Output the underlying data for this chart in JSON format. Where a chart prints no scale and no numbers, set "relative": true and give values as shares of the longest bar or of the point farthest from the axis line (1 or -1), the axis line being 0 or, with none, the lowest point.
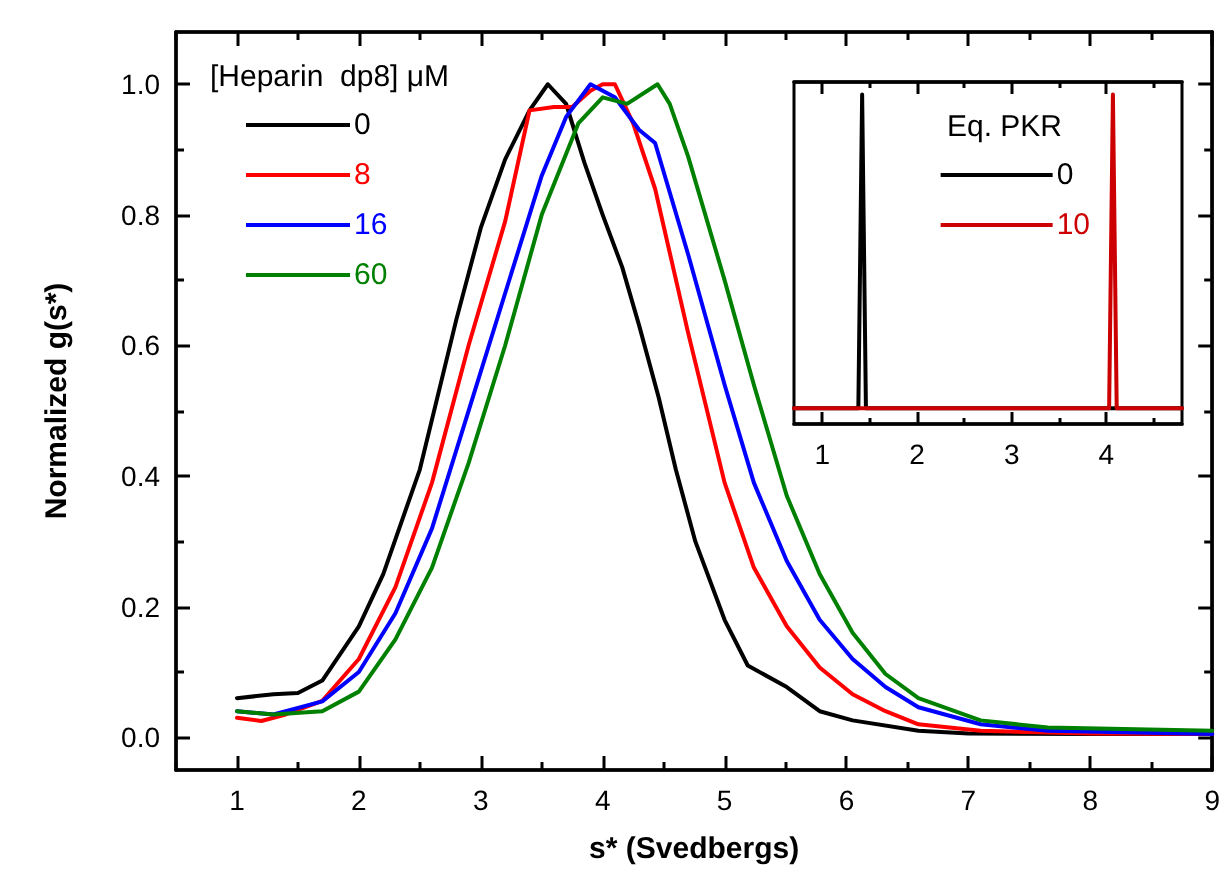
{
  "chart_data": [
    {
      "type": "line",
      "xlabel": "s* (Svedbergs)",
      "ylabel": "Normalized g(s*)",
      "legend_title": "[Heparin  dp8] μM",
      "legend": "top left",
      "grid": false,
      "marker": "none",
      "line_style": "solid",
      "xlim": [
        0.5,
        9
      ],
      "xticks": [
        1,
        2,
        3,
        4,
        5,
        6,
        7,
        8,
        9
      ],
      "ylim": [
        -0.05,
        1.08
      ],
      "yticks": [
        {
          "value": 0,
          "label": "0.0"
        },
        {
          "value": 0.2,
          "label": "0.2"
        },
        {
          "value": 0.4,
          "label": "0.4"
        },
        {
          "value": 0.6,
          "label": "0.6"
        },
        {
          "value": 0.8,
          "label": "0.8"
        },
        {
          "value": 1,
          "label": "1.0"
        }
      ],
      "series": [
        {
          "name": "0",
          "color": "#000000",
          "x": [
            1,
            1.3,
            1.5,
            1.7,
            2.0,
            2.2,
            2.5,
            2.8,
            3.0,
            3.2,
            3.4,
            3.55,
            3.7,
            3.85,
            4.0,
            4.16,
            4.3,
            4.46,
            4.6,
            4.76,
            5.0,
            5.19,
            5.51,
            5.78,
            6.05,
            6.59,
            7.0,
            8.0,
            9.0
          ],
          "values": [
            0.06,
            0.066,
            0.068,
            0.087,
            0.17,
            0.25,
            0.41,
            0.64,
            0.78,
            0.885,
            0.96,
            1.0,
            0.97,
            0.88,
            0.8,
            0.72,
            0.63,
            0.52,
            0.41,
            0.3,
            0.18,
            0.11,
            0.077,
            0.04,
            0.026,
            0.01,
            0.006,
            0.005,
            0.005
          ]
        },
        {
          "name": "8",
          "color": "#ff0000",
          "x": [
            1,
            1.2,
            1.4,
            1.7,
            2.0,
            2.3,
            2.6,
            2.9,
            3.2,
            3.4,
            3.6,
            3.75,
            3.9,
            4.0,
            4.1,
            4.25,
            4.43,
            4.7,
            5.0,
            5.24,
            5.51,
            5.78,
            6.05,
            6.32,
            6.59,
            7.1,
            8.0,
            9.0
          ],
          "values": [
            0.03,
            0.025,
            0.035,
            0.056,
            0.12,
            0.23,
            0.39,
            0.6,
            0.79,
            0.96,
            0.965,
            0.965,
            0.99,
            1.0,
            1.0,
            0.94,
            0.84,
            0.62,
            0.39,
            0.26,
            0.17,
            0.107,
            0.066,
            0.04,
            0.02,
            0.01,
            0.006,
            0.005
          ]
        },
        {
          "name": "16",
          "color": "#0000ff",
          "x": [
            1,
            1.3,
            1.7,
            2.0,
            2.3,
            2.6,
            2.9,
            3.2,
            3.5,
            3.7,
            3.9,
            4.1,
            4.3,
            4.43,
            4.7,
            5.0,
            5.24,
            5.51,
            5.78,
            6.05,
            6.32,
            6.59,
            7.1,
            7.65,
            9.0
          ],
          "values": [
            0.04,
            0.035,
            0.055,
            0.1,
            0.19,
            0.32,
            0.5,
            0.68,
            0.86,
            0.95,
            1.0,
            0.98,
            0.93,
            0.91,
            0.74,
            0.54,
            0.39,
            0.27,
            0.18,
            0.12,
            0.077,
            0.046,
            0.02,
            0.01,
            0.005
          ]
        },
        {
          "name": "60",
          "color": "#008000",
          "x": [
            1,
            1.3,
            1.7,
            2.0,
            2.3,
            2.6,
            2.9,
            3.2,
            3.5,
            3.8,
            4.0,
            4.2,
            4.45,
            4.55,
            4.7,
            5.0,
            5.24,
            5.51,
            5.78,
            6.05,
            6.32,
            6.59,
            7.1,
            7.65,
            9.0
          ],
          "values": [
            0.04,
            0.035,
            0.04,
            0.07,
            0.15,
            0.26,
            0.42,
            0.6,
            0.8,
            0.94,
            0.98,
            0.97,
            1.0,
            0.97,
            0.89,
            0.7,
            0.54,
            0.37,
            0.25,
            0.16,
            0.097,
            0.06,
            0.026,
            0.015,
            0.01
          ]
        }
      ]
    },
    {
      "type": "line",
      "relative": true,
      "legend_title": "Eq. PKR",
      "legend": "top right",
      "grid": false,
      "marker": "none",
      "line_style": "solid",
      "xlim": [
        0.7,
        4.8
      ],
      "xticks": [
        1,
        2,
        3,
        4
      ],
      "series": [
        {
          "name": "0",
          "color": "#000000",
          "x": [
            0.7,
            1.38,
            1.42,
            1.46,
            4.8
          ],
          "values": [
            0,
            0,
            1,
            0,
            0
          ]
        },
        {
          "name": "10",
          "color": "#cc0000",
          "x": [
            0.7,
            4.03,
            4.07,
            4.11,
            4.8
          ],
          "values": [
            0,
            0,
            1,
            0,
            0
          ]
        }
      ]
    }
  ]
}
